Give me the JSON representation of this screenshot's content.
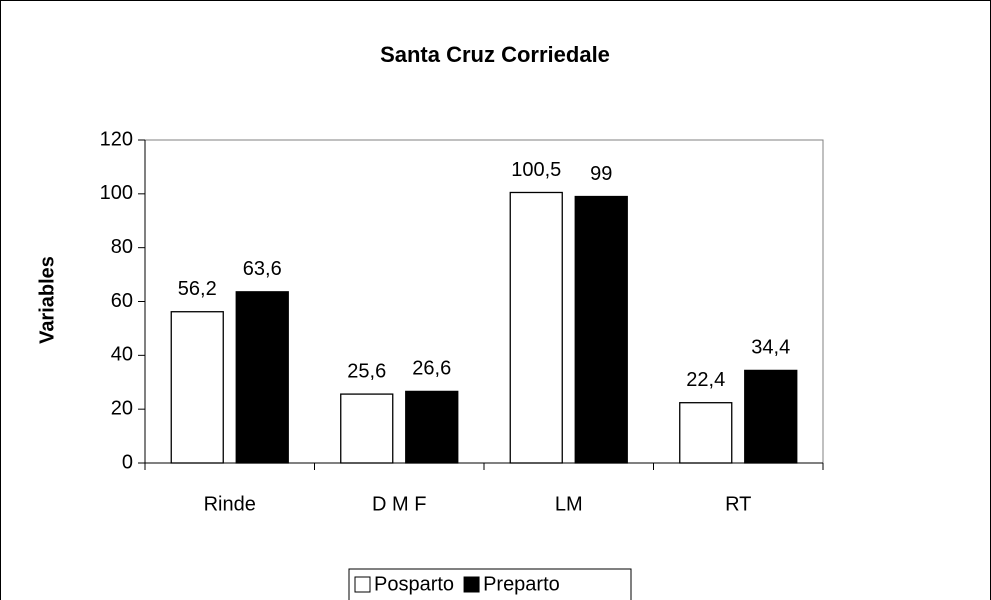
{
  "chart_data": {
    "type": "bar",
    "title": "Santa Cruz Corriedale",
    "y_label": "Variables",
    "categories": [
      "Rinde",
      "D M F",
      "LM",
      "RT"
    ],
    "series": [
      {
        "name": "Posparto",
        "color": "#ffffff",
        "values": [
          56.2,
          25.6,
          100.5,
          22.4
        ],
        "value_labels": [
          "56,2",
          "25,6",
          "100,5",
          "22,4"
        ]
      },
      {
        "name": "Preparto",
        "color": "#000000",
        "values": [
          63.6,
          26.6,
          99,
          34.4
        ],
        "value_labels": [
          "63,6",
          "26,6",
          "99",
          "34,4"
        ]
      }
    ],
    "ylim": [
      0,
      120
    ],
    "yticks": [
      0,
      20,
      40,
      60,
      80,
      100,
      120
    ],
    "grid": false,
    "legend": "bottom"
  }
}
